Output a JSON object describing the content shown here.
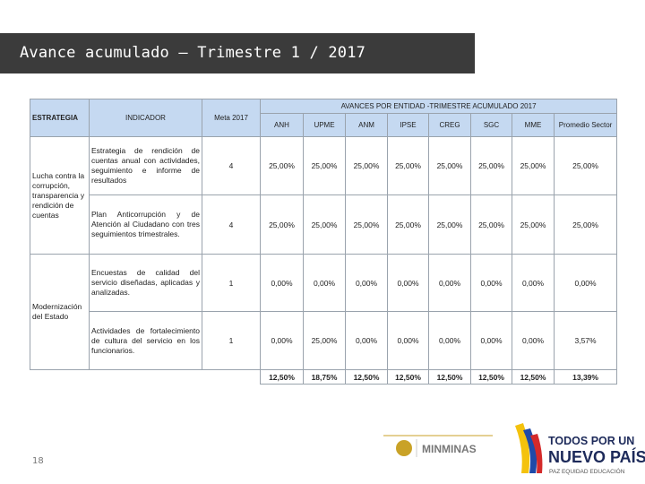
{
  "header": {
    "title": "Avance acumulado – Trimestre 1 / 2017"
  },
  "table": {
    "columns": [
      "ESTRATEGIA",
      "INDICADOR",
      "Meta 2017"
    ],
    "group_header": "AVANCES POR ENTIDAD -TRIMESTRE ACUMULADO 2017",
    "entities": [
      "ANH",
      "UPME",
      "ANM",
      "IPSE",
      "CREG",
      "SGC",
      "MME",
      "Promedio Sector"
    ],
    "groups": [
      {
        "strategy": "Lucha contra la corrupción, transparencia y rendición de cuentas",
        "rows": [
          {
            "indicator": "Estrategia de rendición de cuentas anual con actividades, seguimiento e informe de resultados",
            "meta": 4,
            "values": [
              "25,00%",
              "25,00%",
              "25,00%",
              "25,00%",
              "25,00%",
              "25,00%",
              "25,00%",
              "25,00%"
            ]
          },
          {
            "indicator": "Plan Anticorrupción y de Atención al Ciudadano con tres seguimientos trimestrales.",
            "meta": 4,
            "values": [
              "25,00%",
              "25,00%",
              "25,00%",
              "25,00%",
              "25,00%",
              "25,00%",
              "25,00%",
              "25,00%"
            ]
          }
        ]
      },
      {
        "strategy": "Modernización del Estado",
        "rows": [
          {
            "indicator": "Encuestas de calidad del servicio diseñadas, aplicadas y analizadas.",
            "meta": 1,
            "values": [
              "0,00%",
              "0,00%",
              "0,00%",
              "0,00%",
              "0,00%",
              "0,00%",
              "0,00%",
              "0,00%"
            ]
          },
          {
            "indicator": "Actividades de fortalecimiento de cultura del servicio en los funcionarios.",
            "meta": 1,
            "values": [
              "0,00%",
              "25,00%",
              "0,00%",
              "0,00%",
              "0,00%",
              "0,00%",
              "0,00%",
              "3,57%"
            ]
          }
        ]
      }
    ],
    "totals": [
      "12,50%",
      "18,75%",
      "12,50%",
      "12,50%",
      "12,50%",
      "12,50%",
      "12,50%",
      "13,39%"
    ]
  },
  "footer": {
    "page_number": "18",
    "ministry": "MINMINAS",
    "slogan_line1": "TODOS POR UN",
    "slogan_line2": "NUEVO PAÍS",
    "tagline": "PAZ EQUIDAD EDUCACIÓN"
  }
}
